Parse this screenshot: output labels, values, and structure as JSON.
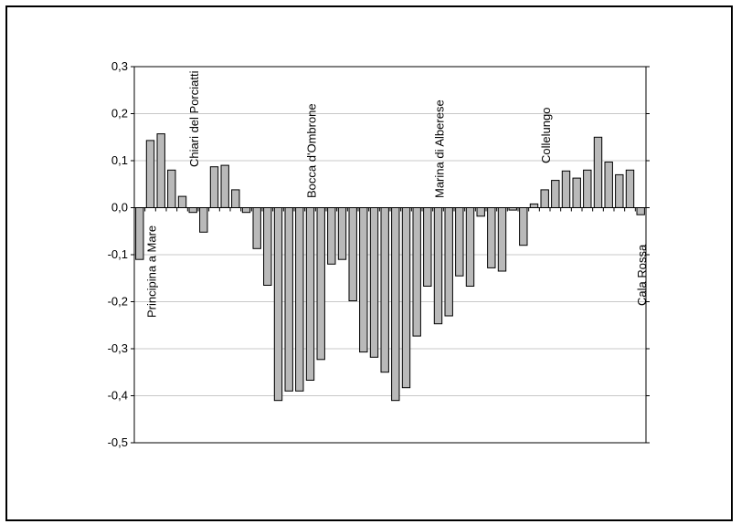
{
  "chart_data": {
    "type": "bar",
    "title": "",
    "xlabel": "",
    "ylabel": "",
    "ylim": [
      -0.5,
      0.3
    ],
    "yticks": [
      -0.5,
      -0.4,
      -0.3,
      -0.2,
      -0.1,
      0.0,
      0.1,
      0.2,
      0.3
    ],
    "ytick_labels": [
      "-0,5",
      "-0,4",
      "-0,3",
      "-0,2",
      "-0,1",
      "0,0",
      "0,1",
      "0,2",
      "0,3"
    ],
    "grid": "horizontal",
    "bar_color": "#b9b9b9",
    "values": [
      -0.11,
      0.143,
      0.157,
      0.08,
      0.024,
      -0.01,
      -0.052,
      0.087,
      0.09,
      0.038,
      -0.01,
      -0.087,
      -0.165,
      -0.41,
      -0.39,
      -0.39,
      -0.367,
      -0.323,
      -0.12,
      -0.11,
      -0.198,
      -0.307,
      -0.318,
      -0.35,
      -0.41,
      -0.383,
      -0.273,
      -0.167,
      -0.247,
      -0.23,
      -0.145,
      -0.167,
      -0.018,
      -0.128,
      -0.135,
      -0.005,
      -0.08,
      0.008,
      0.038,
      0.058,
      0.078,
      0.063,
      0.08,
      0.15,
      0.097,
      0.07,
      0.08,
      -0.015
    ],
    "annotations": [
      {
        "text": "Principina a Mare",
        "bar": 1
      },
      {
        "text": "Chiari del Porciatti",
        "bar": 5
      },
      {
        "text": "Bocca d'Ombrone",
        "bar": 16
      },
      {
        "text": "Marina di Alberese",
        "bar": 28
      },
      {
        "text": "Collelungo",
        "bar": 38
      },
      {
        "text": "Cala Rossa",
        "bar": 47
      }
    ]
  }
}
